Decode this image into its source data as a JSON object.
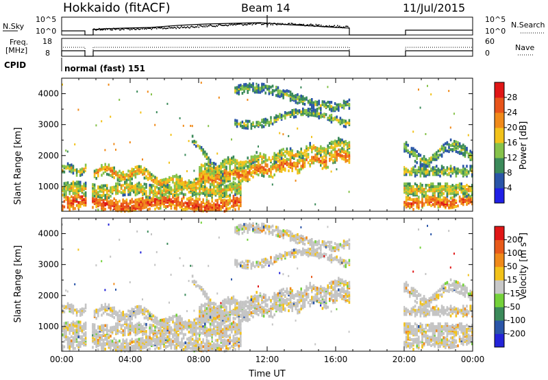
{
  "header": {
    "station": "Hokkaido (fitACF)",
    "beam": "Beam 14",
    "date": "11/Jul/2015"
  },
  "noise_panel": {
    "left_label": "N.Sky",
    "left_ticks": [
      "10^5",
      "10^0"
    ],
    "right_ticks": [
      "10^5",
      "10^0"
    ],
    "right_label": "N.Search"
  },
  "freq_panel": {
    "left_label_line1": "Freq.",
    "left_label_line2": "[MHz]",
    "left_ticks": [
      "18",
      "8"
    ],
    "right_ticks": [
      "60",
      "0"
    ],
    "right_label": "Nave"
  },
  "cpid_panel": {
    "label": "CPID",
    "mode_text": "normal (fast) 151"
  },
  "colors": {
    "power_scale": [
      "#1f1fe6",
      "#2a55a8",
      "#3b8a5a",
      "#86c24a",
      "#f2c21a",
      "#f08a1a",
      "#e8541a",
      "#e01616"
    ],
    "velocity_scale": [
      "#2323d8",
      "#2a55a8",
      "#3b8a5a",
      "#74d13a",
      "#c8c8c8",
      "#f2c21a",
      "#f08a1a",
      "#e85a1a",
      "#e01616"
    ],
    "gray": "#c4c4c4"
  },
  "chart_data": [
    {
      "type": "heatmap",
      "name": "power",
      "xlabel": "",
      "ylabel": "Slant Range [km]",
      "ylim": [
        200,
        4500
      ],
      "yticks": [
        "1000",
        "2000",
        "3000",
        "4000"
      ],
      "colorbar_label": "Power [dB]",
      "colorbar_ticks": [
        "28",
        "24",
        "20",
        "16",
        "12",
        "8",
        "4"
      ],
      "data_gaps_hours": [
        [
          1.45,
          1.75
        ],
        [
          16.8,
          19.9
        ]
      ]
    },
    {
      "type": "heatmap",
      "name": "velocity",
      "xlabel": "Time UT",
      "ylabel": "Slant Range [km]",
      "ylim": [
        200,
        4500
      ],
      "yticks": [
        "1000",
        "2000",
        "3000",
        "4000"
      ],
      "xticks": [
        "00:00",
        "04:00",
        "08:00",
        "12:00",
        "16:00",
        "20:00",
        "00:00"
      ],
      "colorbar_label": "Velocity [m s",
      "colorbar_label_sup": "-1",
      "colorbar_label_end": "]",
      "colorbar_ticks": [
        "200",
        "100",
        "50",
        "15",
        "-15",
        "-50",
        "-100",
        "-200"
      ],
      "data_gaps_hours": [
        [
          1.45,
          1.75
        ],
        [
          16.8,
          19.9
        ]
      ]
    }
  ]
}
